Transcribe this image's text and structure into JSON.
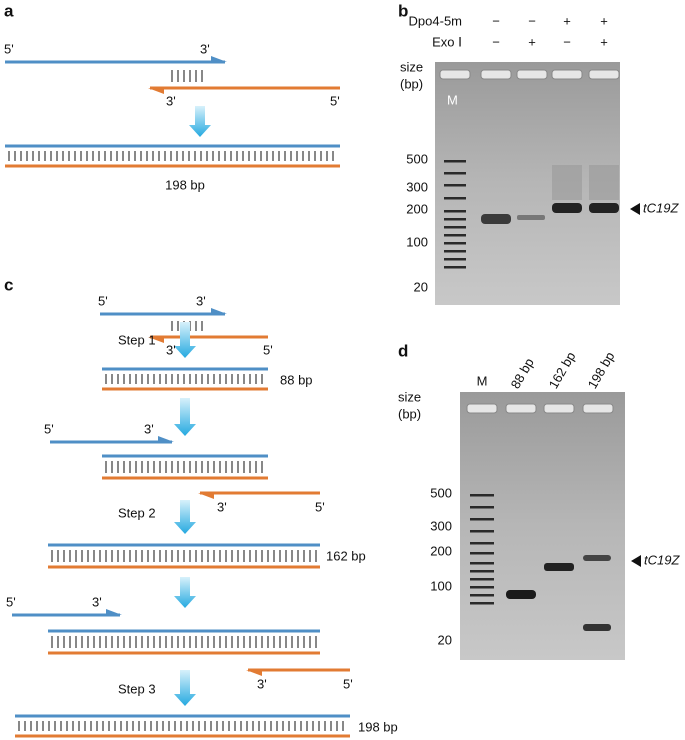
{
  "panel_a": {
    "label": "a",
    "top_5": "5'",
    "top_3": "3'",
    "bottom_3": "3'",
    "bottom_5": "5'",
    "product": "198 bp"
  },
  "panel_b": {
    "label": "b",
    "conditions": [
      {
        "name": "Dpo4-5m",
        "marks": [
          "−",
          "−",
          "+",
          "+"
        ]
      },
      {
        "name": "Exo Ⅰ",
        "marks": [
          "−",
          "+",
          "−",
          "+"
        ]
      }
    ],
    "size_label": [
      "size",
      "(bp)"
    ],
    "marker": "M",
    "ladder": [
      "500",
      "300",
      "200",
      "100",
      "20"
    ],
    "band_label": "tC19Z"
  },
  "panel_c": {
    "label": "c",
    "steps": [
      {
        "name": "Step 1",
        "primer_5": "5'",
        "primer_3": "3'",
        "reverse_3": "3'",
        "reverse_5": "5'",
        "product": "88 bp"
      },
      {
        "name": "Step 2",
        "primer_5": "5'",
        "primer_3": "3'",
        "reverse_3": "3'",
        "reverse_5": "5'",
        "product": "162 bp"
      },
      {
        "name": "Step 3",
        "primer_5": "5'",
        "primer_3": "3'",
        "reverse_3": "3'",
        "reverse_5": "5'",
        "product": "198 bp"
      }
    ]
  },
  "panel_d": {
    "label": "d",
    "lanes": [
      "M",
      "88 bp",
      "162 bp",
      "198 bp"
    ],
    "size_label": [
      "size",
      "(bp)"
    ],
    "ladder": [
      "500",
      "300",
      "200",
      "100",
      "20"
    ],
    "band_label": "tC19Z"
  }
}
